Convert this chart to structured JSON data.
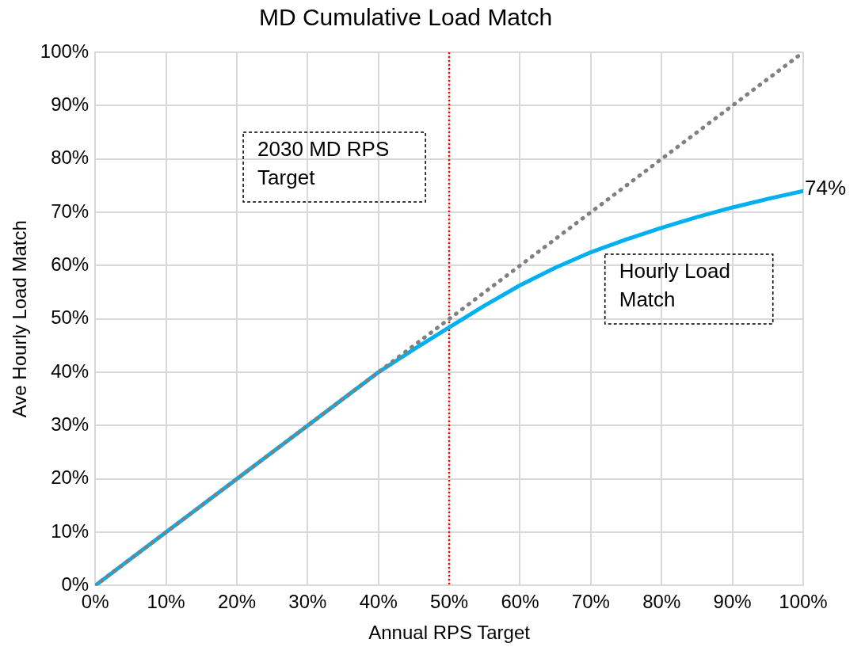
{
  "chart_data": {
    "type": "line",
    "title": "MD Cumulative Load Match",
    "xlabel": "Annual RPS Target",
    "ylabel": "Ave Hourly Load Match",
    "xlim": [
      0,
      100
    ],
    "ylim": [
      0,
      100
    ],
    "xticks": [
      {
        "value": 0,
        "label": "0%"
      },
      {
        "value": 10,
        "label": "10%"
      },
      {
        "value": 20,
        "label": "20%"
      },
      {
        "value": 30,
        "label": "30%"
      },
      {
        "value": 40,
        "label": "40%"
      },
      {
        "value": 50,
        "label": "50%"
      },
      {
        "value": 60,
        "label": "60%"
      },
      {
        "value": 70,
        "label": "70%"
      },
      {
        "value": 80,
        "label": "80%"
      },
      {
        "value": 90,
        "label": "90%"
      },
      {
        "value": 100,
        "label": "100%"
      }
    ],
    "yticks": [
      {
        "value": 0,
        "label": "0%"
      },
      {
        "value": 10,
        "label": "10%"
      },
      {
        "value": 20,
        "label": "20%"
      },
      {
        "value": 30,
        "label": "30%"
      },
      {
        "value": 40,
        "label": "40%"
      },
      {
        "value": 50,
        "label": "50%"
      },
      {
        "value": 60,
        "label": "60%"
      },
      {
        "value": 70,
        "label": "70%"
      },
      {
        "value": 80,
        "label": "80%"
      },
      {
        "value": 90,
        "label": "90%"
      },
      {
        "value": 100,
        "label": "100%"
      }
    ],
    "series": [
      {
        "color": "#808080",
        "line_style": "dotted",
        "x": [
          0,
          100
        ],
        "values": [
          0,
          100
        ]
      },
      {
        "name": "Hourly Load Match",
        "color": "#00b0f0",
        "line_style": "solid",
        "x": [
          0,
          10,
          20,
          30,
          40,
          45,
          50,
          55,
          60,
          65,
          70,
          75,
          80,
          85,
          90,
          95,
          100
        ],
        "values": [
          0,
          10,
          20,
          30,
          40,
          44.3,
          48.4,
          52.5,
          56.3,
          59.6,
          62.5,
          64.9,
          67.1,
          69.1,
          70.9,
          72.5,
          74
        ]
      }
    ],
    "ref_lines": [
      {
        "axis": "x",
        "value": 50,
        "label": "2030 MD RPS Target",
        "color": "#ff0000",
        "line_style": "dotted"
      }
    ],
    "annotations": [
      {
        "text": "74%",
        "x": 100,
        "y": 74
      }
    ],
    "grid": true,
    "legend": false,
    "marker": "none"
  }
}
